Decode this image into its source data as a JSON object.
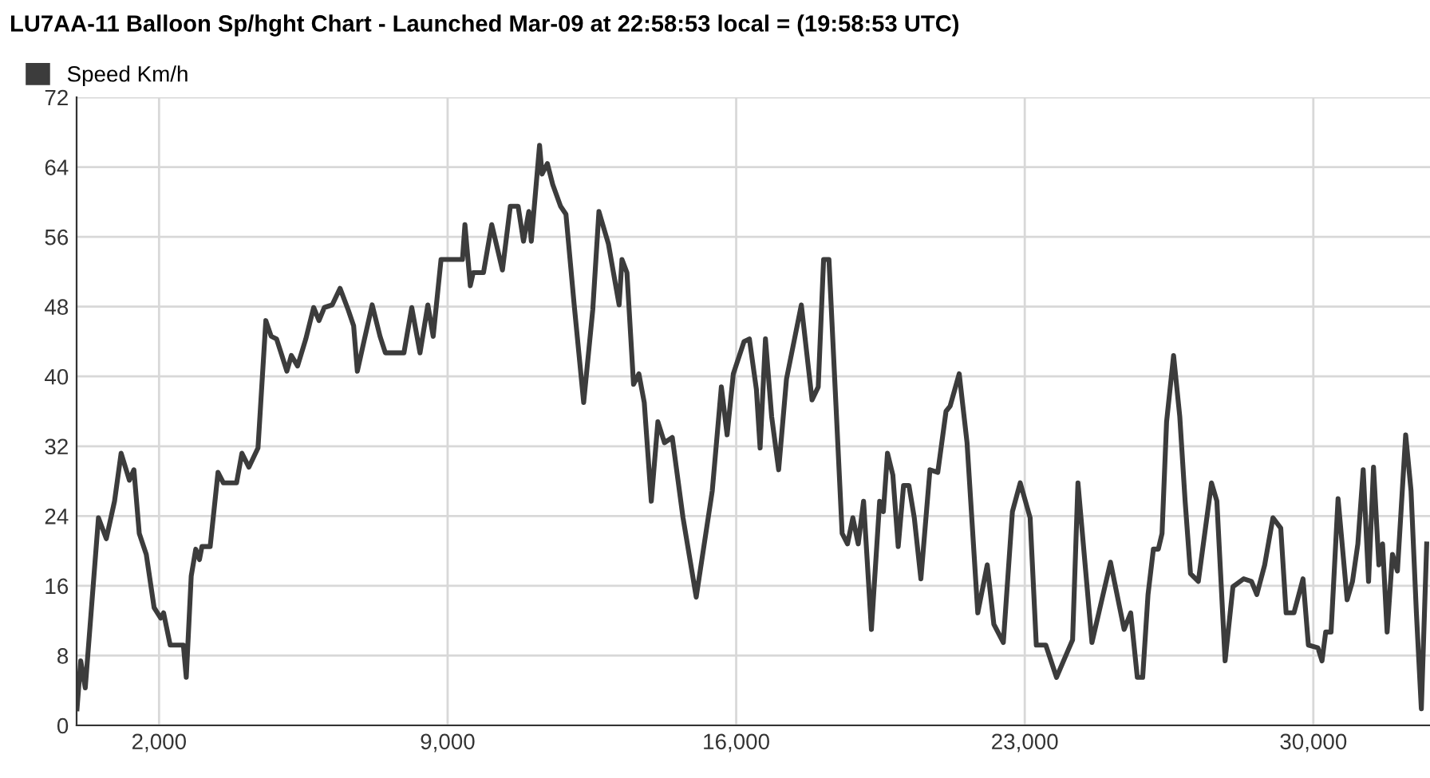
{
  "chart_data": {
    "type": "line",
    "title": "LU7AA-11 Balloon Sp/hght Chart - Launched Mar-09 at 22:58:53 local = (19:58:53 UTC)",
    "series": [
      {
        "name": "Speed Km/h",
        "color": "#3c3c3c",
        "x": [
          10,
          100,
          210,
          530,
          720,
          920,
          1080,
          1280,
          1390,
          1520,
          1690,
          1880,
          2040,
          2110,
          2270,
          2590,
          2660,
          2780,
          2890,
          2980,
          3040,
          3240,
          3430,
          3560,
          3880,
          4010,
          4180,
          4400,
          4590,
          4720,
          4850,
          4980,
          5100,
          5210,
          5360,
          5560,
          5750,
          5880,
          6010,
          6200,
          6390,
          6590,
          6720,
          6810,
          6970,
          7170,
          7360,
          7490,
          7750,
          7940,
          8130,
          8330,
          8520,
          8650,
          8840,
          9040,
          9360,
          9420,
          9550,
          9620,
          9870,
          10070,
          10330,
          10520,
          10710,
          10840,
          10970,
          11030,
          11230,
          11290,
          11420,
          11550,
          11740,
          11870,
          12070,
          12300,
          12520,
          12670,
          12900,
          13160,
          13230,
          13350,
          13510,
          13640,
          13770,
          13940,
          14100,
          14260,
          14450,
          14710,
          15030,
          15420,
          15640,
          15780,
          15930,
          16190,
          16320,
          16490,
          16580,
          16710,
          16860,
          17030,
          17220,
          17580,
          17840,
          17990,
          18120,
          18250,
          18570,
          18700,
          18830,
          18960,
          19090,
          19280,
          19480,
          19570,
          19670,
          19800,
          19930,
          20060,
          20190,
          20320,
          20480,
          20700,
          20890,
          21090,
          21190,
          21410,
          21600,
          21860,
          22090,
          22250,
          22480,
          22700,
          22890,
          23130,
          23280,
          23510,
          23770,
          24050,
          24160,
          24290,
          24630,
          25080,
          25410,
          25570,
          25730,
          25860,
          25990,
          26120,
          26240,
          26330,
          26440,
          26610,
          26760,
          26890,
          27020,
          27210,
          27530,
          27660,
          27860,
          28050,
          28310,
          28500,
          28630,
          28820,
          29020,
          29210,
          29340,
          29530,
          29750,
          29880,
          30110,
          30210,
          30300,
          30430,
          30600,
          30820,
          30950,
          31080,
          31210,
          31340,
          31460,
          31590,
          31680,
          31790,
          31920,
          32040,
          32240,
          32370,
          32500,
          32620,
          32750
        ],
        "values": [
          1.9,
          7.4,
          4.3,
          23.8,
          21.4,
          25.7,
          31.2,
          28.1,
          29.3,
          22,
          19.6,
          13.5,
          12.3,
          12.9,
          9.2,
          9.2,
          5.5,
          17.1,
          20.2,
          19,
          20.5,
          20.5,
          29,
          27.8,
          27.8,
          31.2,
          29.6,
          31.8,
          46.4,
          44.6,
          44.3,
          42.4,
          40.6,
          42.4,
          41.2,
          44.3,
          47.9,
          46.4,
          47.9,
          48.2,
          50.1,
          47.6,
          45.8,
          40.6,
          44,
          48.2,
          44.6,
          42.7,
          42.7,
          42.7,
          47.9,
          42.7,
          48.2,
          44.6,
          53.4,
          53.4,
          53.4,
          57.4,
          50.4,
          51.9,
          51.9,
          57.4,
          52.2,
          59.5,
          59.5,
          55.5,
          58.9,
          55.5,
          66.5,
          63.2,
          64.4,
          62,
          59.5,
          58.6,
          48.2,
          37,
          47.6,
          58.9,
          55.2,
          48.2,
          53.4,
          51.9,
          39.1,
          40.3,
          37,
          25.7,
          34.8,
          32.4,
          33,
          23.8,
          14.7,
          26.9,
          38.8,
          33.3,
          40.3,
          44,
          44.3,
          38.5,
          31.8,
          44.3,
          35.4,
          29.3,
          39.7,
          48.2,
          37.3,
          38.8,
          53.4,
          53.4,
          22,
          20.8,
          23.8,
          20.8,
          25.7,
          11,
          25.7,
          24.5,
          31.2,
          28.7,
          20.5,
          27.5,
          27.5,
          23.8,
          16.8,
          29.3,
          29,
          36,
          36.6,
          40.3,
          32.4,
          12.9,
          18.4,
          11.6,
          9.5,
          24.5,
          27.8,
          23.8,
          9.2,
          9.2,
          5.5,
          8.6,
          9.8,
          27.8,
          9.5,
          18.7,
          11,
          12.9,
          5.5,
          5.5,
          15,
          20.2,
          20.2,
          22,
          34.8,
          42.4,
          35.4,
          25.7,
          17.4,
          16.5,
          27.8,
          25.7,
          7.4,
          15.9,
          16.8,
          16.5,
          15,
          18.4,
          23.8,
          22.6,
          12.9,
          12.9,
          16.8,
          9.2,
          8.9,
          7.4,
          10.7,
          10.7,
          26,
          14.4,
          16.5,
          20.8,
          29.3,
          16.5,
          29.6,
          18.4,
          20.8,
          10.7,
          19.6,
          17.7,
          33.3,
          26.9,
          12.9,
          1.9,
          20.8
        ]
      }
    ],
    "xlim": [
      0,
      32830
    ],
    "xticks": [
      {
        "value": 2000,
        "label": "2,000"
      },
      {
        "value": 9000,
        "label": "9,000"
      },
      {
        "value": 16000,
        "label": "16,000"
      },
      {
        "value": 23000,
        "label": "23,000"
      },
      {
        "value": 30000,
        "label": "30,000"
      }
    ],
    "ylim": [
      0,
      72
    ],
    "yticks": [
      0,
      8,
      16,
      24,
      32,
      40,
      48,
      56,
      64,
      72
    ],
    "grid": true,
    "legend": "top left",
    "marker": "none",
    "line_style": "solid"
  }
}
